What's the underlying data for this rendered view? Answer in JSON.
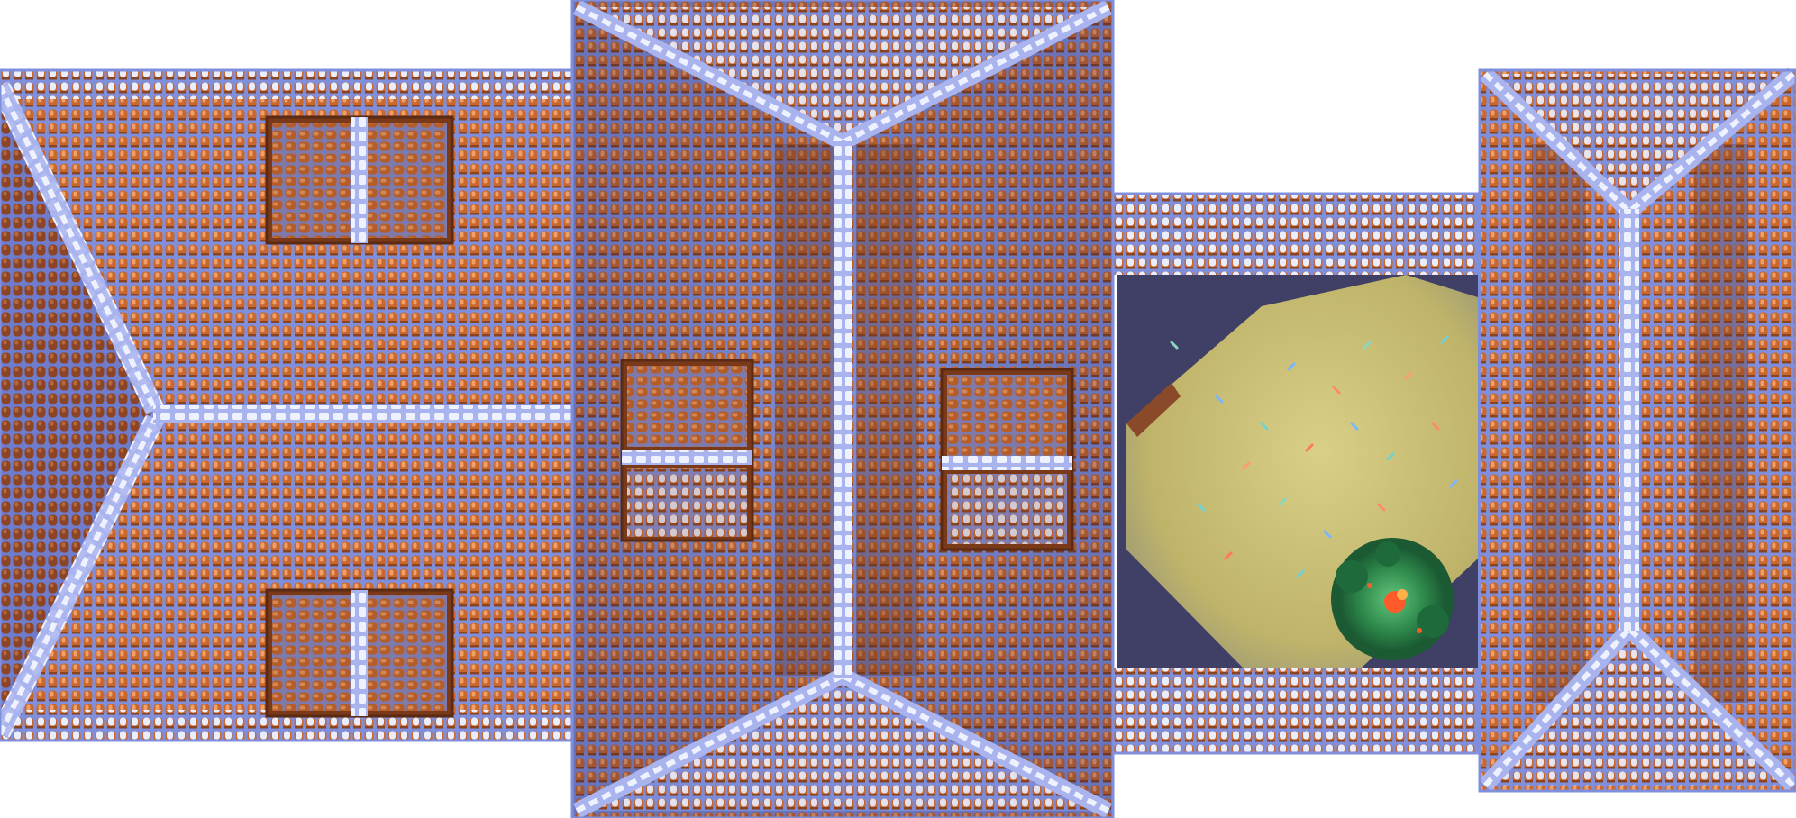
{
  "scene": {
    "type": "top-down pixel-art rooftop tileset",
    "palette": {
      "background": "#ffffff",
      "tile_orange": "#c8682e",
      "tile_highlight": "#f0a067",
      "tile_dark": "#7a3a1a",
      "grout_blue": "#7f8fdc",
      "ridge_light": "#dfe6ff",
      "ridge_blue": "#a9b4ee",
      "floor_yellow": "#c9bd6e",
      "floor_dark": "#403f66",
      "bush_green": "#2f8a4c",
      "berry_red": "#ff5a2a"
    },
    "sections": [
      {
        "name": "hip-roof-left",
        "icon": "roof-ridge-icon"
      },
      {
        "name": "gable-roof-center",
        "icon": "roof-ridge-icon"
      },
      {
        "name": "open-courtyard",
        "icon": "courtyard-light-icon"
      },
      {
        "name": "cross-roof-right",
        "icon": "roof-ridge-icon"
      }
    ],
    "decor": [
      "dormer-window-icon",
      "shrub-icon",
      "confetti-particles"
    ]
  }
}
